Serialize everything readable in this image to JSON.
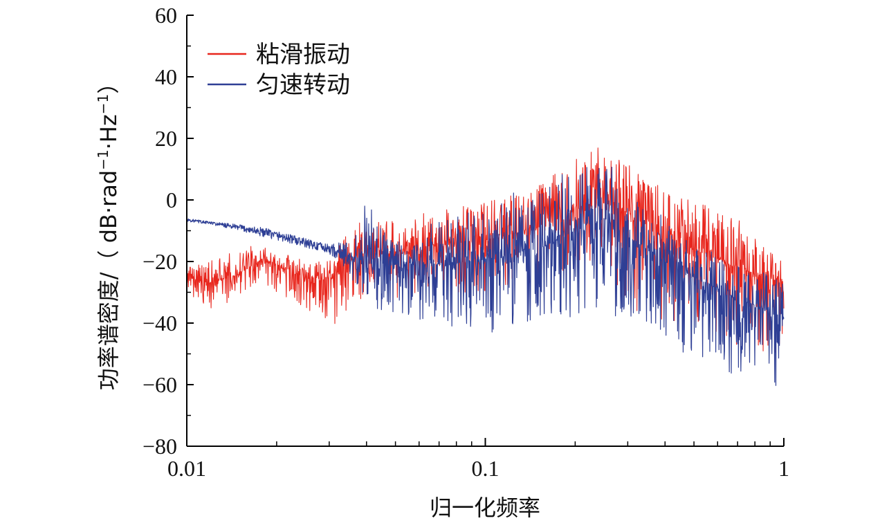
{
  "chart_data": {
    "type": "line",
    "xscale": "log",
    "xlim": [
      0.01,
      1
    ],
    "ylim": [
      -80,
      60
    ],
    "xlabel": "归一化频率",
    "ylabel_main": "功率谱密度/（ dB·rad",
    "ylabel_sup1": "−1",
    "ylabel_mid": "·Hz",
    "ylabel_sup2": "−1",
    "ylabel_end": "）",
    "x_ticks": [
      {
        "value": 0.01,
        "label": "0.01"
      },
      {
        "value": 0.1,
        "label": "0.1"
      },
      {
        "value": 1,
        "label": "1"
      }
    ],
    "y_ticks": [
      {
        "value": 60,
        "label": "60"
      },
      {
        "value": 40,
        "label": "40"
      },
      {
        "value": 20,
        "label": "20"
      },
      {
        "value": 0,
        "label": "0"
      },
      {
        "value": -20,
        "label": "−20"
      },
      {
        "value": -40,
        "label": "−40"
      },
      {
        "value": -60,
        "label": "−60"
      },
      {
        "value": -80,
        "label": "−80"
      }
    ],
    "legend_position": "top-left",
    "series": [
      {
        "name": "粘滑振动",
        "color": "#e8261d",
        "envelope": {
          "x": [
            0.01,
            0.012,
            0.015,
            0.018,
            0.02,
            0.025,
            0.03,
            0.035,
            0.04,
            0.05,
            0.07,
            0.1,
            0.15,
            0.2,
            0.25,
            0.3,
            0.4,
            0.5,
            0.7,
            1.0
          ],
          "mid": [
            -25,
            -27,
            -24,
            -19,
            -21,
            -25,
            -26,
            -20,
            -17,
            -18,
            -14,
            -13,
            -9,
            -3,
            -1,
            -4,
            -12,
            -16,
            -22,
            -27
          ],
          "up": [
            -22,
            -19,
            -16,
            -14,
            -16,
            -20,
            -20,
            -10,
            -5,
            -7,
            -3,
            -1,
            5,
            14,
            19,
            12,
            4,
            0,
            -6,
            -20
          ],
          "lo": [
            -30,
            -37,
            -33,
            -28,
            -30,
            -36,
            -43,
            -35,
            -32,
            -32,
            -30,
            -30,
            -27,
            -22,
            -20,
            -35,
            -40,
            -45,
            -48,
            -56
          ]
        }
      },
      {
        "name": "匀速转动",
        "color": "#2e3f95",
        "envelope": {
          "x": [
            0.01,
            0.012,
            0.015,
            0.018,
            0.02,
            0.025,
            0.03,
            0.035,
            0.04,
            0.05,
            0.07,
            0.1,
            0.15,
            0.2,
            0.25,
            0.3,
            0.4,
            0.5,
            0.7,
            1.0
          ],
          "mid": [
            -6.5,
            -7.5,
            -9,
            -10.5,
            -11.5,
            -14,
            -16,
            -18,
            -20,
            -21,
            -21,
            -19,
            -16,
            -10,
            -6,
            -12,
            -20,
            -25,
            -32,
            -38
          ],
          "up": [
            -6,
            -7,
            -8,
            -9,
            -10,
            -12,
            -14,
            -14,
            0,
            -14,
            -6,
            -2,
            6,
            10,
            14,
            4,
            -6,
            -12,
            -20,
            -25
          ],
          "lo": [
            -7,
            -8,
            -10,
            -12,
            -13,
            -15,
            -17,
            -24,
            -35,
            -37,
            -42,
            -44,
            -40,
            -38,
            -36,
            -42,
            -47,
            -52,
            -58,
            -63
          ]
        }
      }
    ]
  }
}
